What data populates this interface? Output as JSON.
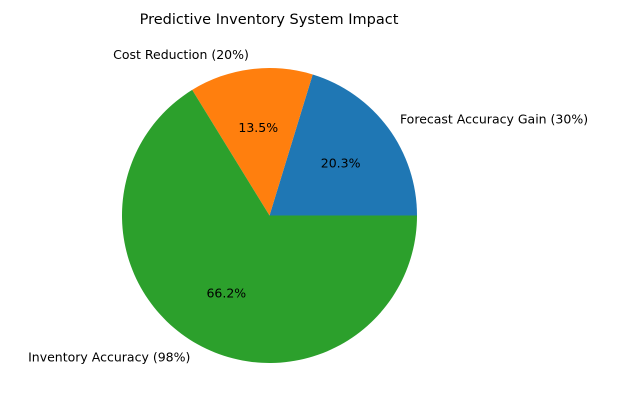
{
  "chart_data": {
    "type": "pie",
    "title": "Predictive Inventory System Impact",
    "slices": [
      {
        "label": "Forecast Accuracy Gain (30%)",
        "value": 30,
        "percent_label": "20.3%",
        "color": "#1f77b4"
      },
      {
        "label": "Cost Reduction (20%)",
        "value": 20,
        "percent_label": "13.5%",
        "color": "#ff7f0e"
      },
      {
        "label": "Inventory Accuracy (98%)",
        "value": 98,
        "percent_label": "66.2%",
        "color": "#2ca02c"
      }
    ],
    "start_angle_deg": 0,
    "direction": "counterclockwise",
    "legend": "none"
  }
}
